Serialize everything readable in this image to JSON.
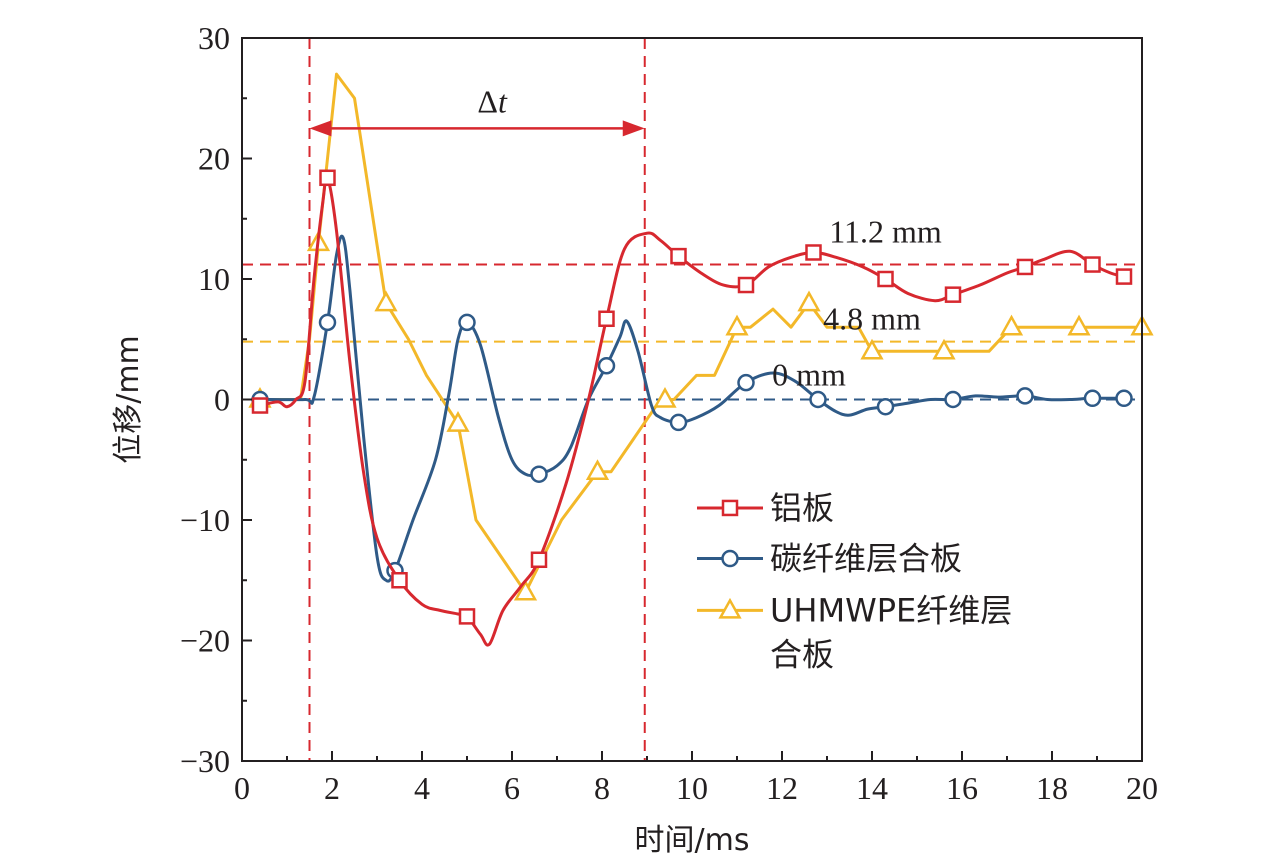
{
  "chart_data": {
    "type": "line",
    "xlabel": "时间/ms",
    "ylabel": "位移/mm",
    "xlim": [
      0,
      20
    ],
    "ylim": [
      -30,
      30
    ],
    "xticks": [
      0,
      2,
      4,
      6,
      8,
      10,
      12,
      14,
      16,
      18,
      20
    ],
    "yticks": [
      -30,
      -20,
      -10,
      0,
      10,
      20,
      30
    ],
    "xtick_labels": [
      "0",
      "2",
      "4",
      "6",
      "8",
      "10",
      "12",
      "14",
      "16",
      "18",
      "20"
    ],
    "ytick_labels": [
      "−30",
      "−20",
      "−10",
      "0",
      "10",
      "20",
      "30"
    ],
    "grid": false,
    "legend_position": "right-middle",
    "series": [
      {
        "name": "铝板",
        "color": "#d7282f",
        "marker": "square",
        "points": [
          [
            0.4,
            -0.5
          ],
          [
            0.8,
            -0.2
          ],
          [
            1.0,
            -0.6
          ],
          [
            1.2,
            0.0
          ],
          [
            1.4,
            1.5
          ],
          [
            1.6,
            10.0
          ],
          [
            1.8,
            16.5
          ],
          [
            1.9,
            18.4
          ],
          [
            2.1,
            14.0
          ],
          [
            2.4,
            3.0
          ],
          [
            2.7,
            -6.0
          ],
          [
            3.0,
            -11.5
          ],
          [
            3.5,
            -15.0
          ],
          [
            4.0,
            -17.0
          ],
          [
            4.4,
            -17.5
          ],
          [
            4.8,
            -17.8
          ],
          [
            5.0,
            -18.0
          ],
          [
            5.3,
            -19.5
          ],
          [
            5.5,
            -20.3
          ],
          [
            5.8,
            -17.5
          ],
          [
            6.2,
            -15.5
          ],
          [
            6.6,
            -13.3
          ],
          [
            7.2,
            -7.0
          ],
          [
            7.7,
            0.0
          ],
          [
            8.1,
            6.7
          ],
          [
            8.5,
            12.5
          ],
          [
            9.0,
            13.8
          ],
          [
            9.3,
            13.2
          ],
          [
            9.7,
            11.9
          ],
          [
            10.2,
            10.5
          ],
          [
            10.7,
            9.5
          ],
          [
            11.2,
            9.5
          ],
          [
            11.7,
            11.0
          ],
          [
            12.2,
            11.8
          ],
          [
            12.7,
            12.2
          ],
          [
            13.2,
            11.8
          ],
          [
            13.8,
            11.0
          ],
          [
            14.3,
            10.0
          ],
          [
            14.8,
            8.8
          ],
          [
            15.4,
            8.2
          ],
          [
            15.8,
            8.7
          ],
          [
            16.4,
            9.5
          ],
          [
            17.0,
            10.5
          ],
          [
            17.4,
            11.0
          ],
          [
            17.8,
            11.6
          ],
          [
            18.4,
            12.3
          ],
          [
            18.9,
            11.2
          ],
          [
            19.3,
            10.5
          ],
          [
            19.6,
            10.2
          ]
        ],
        "marker_points": [
          [
            0.4,
            -0.5
          ],
          [
            1.9,
            18.4
          ],
          [
            3.5,
            -15.0
          ],
          [
            5.0,
            -18.0
          ],
          [
            6.6,
            -13.3
          ],
          [
            8.1,
            6.7
          ],
          [
            9.7,
            11.9
          ],
          [
            11.2,
            9.5
          ],
          [
            12.7,
            12.2
          ],
          [
            14.3,
            10.0
          ],
          [
            15.8,
            8.7
          ],
          [
            17.4,
            11.0
          ],
          [
            18.9,
            11.2
          ],
          [
            19.6,
            10.2
          ]
        ]
      },
      {
        "name": "碳纤维层合板",
        "color": "#2f5a87",
        "marker": "circle",
        "points": [
          [
            0.4,
            0.0
          ],
          [
            1.4,
            0.0
          ],
          [
            1.6,
            0.2
          ],
          [
            1.9,
            6.4
          ],
          [
            2.1,
            12.0
          ],
          [
            2.25,
            13.4
          ],
          [
            2.4,
            9.0
          ],
          [
            2.7,
            -3.0
          ],
          [
            3.0,
            -13.0
          ],
          [
            3.2,
            -15.0
          ],
          [
            3.4,
            -14.2
          ],
          [
            3.8,
            -10.0
          ],
          [
            4.3,
            -5.0
          ],
          [
            4.6,
            0.5
          ],
          [
            4.8,
            5.0
          ],
          [
            5.0,
            6.4
          ],
          [
            5.3,
            4.5
          ],
          [
            5.7,
            -1.5
          ],
          [
            6.0,
            -5.0
          ],
          [
            6.3,
            -6.2
          ],
          [
            6.6,
            -6.2
          ],
          [
            7.0,
            -5.5
          ],
          [
            7.3,
            -4.0
          ],
          [
            7.7,
            0.0
          ],
          [
            8.1,
            2.8
          ],
          [
            8.4,
            5.2
          ],
          [
            8.55,
            6.5
          ],
          [
            8.8,
            4.0
          ],
          [
            9.1,
            -0.5
          ],
          [
            9.3,
            -1.5
          ],
          [
            9.7,
            -1.9
          ],
          [
            10.1,
            -1.5
          ],
          [
            10.6,
            -0.5
          ],
          [
            11.2,
            1.4
          ],
          [
            11.8,
            2.2
          ],
          [
            12.3,
            1.5
          ],
          [
            12.8,
            0.0
          ],
          [
            13.2,
            -1.0
          ],
          [
            13.5,
            -1.3
          ],
          [
            13.9,
            -0.8
          ],
          [
            14.3,
            -0.6
          ],
          [
            14.8,
            -0.3
          ],
          [
            15.3,
            0.0
          ],
          [
            15.8,
            0.0
          ],
          [
            16.3,
            0.3
          ],
          [
            16.8,
            0.2
          ],
          [
            17.4,
            0.3
          ],
          [
            17.9,
            0.0
          ],
          [
            18.4,
            0.0
          ],
          [
            18.9,
            0.1
          ],
          [
            19.6,
            0.1
          ]
        ],
        "marker_points": [
          [
            0.4,
            0.0
          ],
          [
            1.9,
            6.4
          ],
          [
            3.4,
            -14.2
          ],
          [
            5.0,
            6.4
          ],
          [
            6.6,
            -6.2
          ],
          [
            8.1,
            2.8
          ],
          [
            9.7,
            -1.9
          ],
          [
            11.2,
            1.4
          ],
          [
            12.8,
            0.0
          ],
          [
            14.3,
            -0.6
          ],
          [
            15.8,
            0.0
          ],
          [
            17.4,
            0.3
          ],
          [
            18.9,
            0.1
          ],
          [
            19.6,
            0.1
          ]
        ]
      },
      {
        "name": "UHMWPE纤维层合板",
        "color": "#f3b829",
        "marker": "triangle",
        "points": [
          [
            0.4,
            0.0
          ],
          [
            1.3,
            0.0
          ],
          [
            1.5,
            5.0
          ],
          [
            1.7,
            13.0
          ],
          [
            2.1,
            27.0
          ],
          [
            2.5,
            25.0
          ],
          [
            3.2,
            8.0
          ],
          [
            3.7,
            5.0
          ],
          [
            4.1,
            2.0
          ],
          [
            4.8,
            -2.0
          ],
          [
            5.2,
            -10.0
          ],
          [
            6.3,
            -16.0
          ],
          [
            7.1,
            -10.0
          ],
          [
            7.9,
            -6.0
          ],
          [
            8.2,
            -6.0
          ],
          [
            9.3,
            0.0
          ],
          [
            9.6,
            0.0
          ],
          [
            10.1,
            2.0
          ],
          [
            10.5,
            2.0
          ],
          [
            11.0,
            6.0
          ],
          [
            11.3,
            6.0
          ],
          [
            11.8,
            7.5
          ],
          [
            12.2,
            6.0
          ],
          [
            12.6,
            8.0
          ],
          [
            13.0,
            6.0
          ],
          [
            13.7,
            6.0
          ],
          [
            14.0,
            4.0
          ],
          [
            15.6,
            4.0
          ],
          [
            16.6,
            4.0
          ],
          [
            17.1,
            6.0
          ],
          [
            18.6,
            6.0
          ],
          [
            20.0,
            6.0
          ]
        ],
        "marker_points": [
          [
            0.4,
            0.0
          ],
          [
            1.7,
            13.0
          ],
          [
            3.2,
            8.0
          ],
          [
            4.8,
            -2.0
          ],
          [
            6.3,
            -16.0
          ],
          [
            7.9,
            -6.0
          ],
          [
            9.4,
            0.0
          ],
          [
            11.0,
            6.0
          ],
          [
            12.6,
            8.0
          ],
          [
            14.0,
            4.0
          ],
          [
            15.6,
            4.0
          ],
          [
            17.1,
            6.0
          ],
          [
            18.6,
            6.0
          ],
          [
            20.0,
            6.0
          ]
        ]
      }
    ],
    "reference_lines": [
      {
        "axis": "y",
        "value": 11.2,
        "color": "#d7282f",
        "label": "11.2 mm"
      },
      {
        "axis": "y",
        "value": 4.8,
        "color": "#f3b829",
        "label": "4.8 mm"
      },
      {
        "axis": "y",
        "value": 0,
        "color": "#2f5a87",
        "label": "0 mm"
      },
      {
        "axis": "x",
        "value": 1.5,
        "color": "#d7282f"
      },
      {
        "axis": "x",
        "value": 8.95,
        "color": "#d7282f"
      }
    ],
    "interval_annotation": {
      "from": 1.5,
      "to": 8.95,
      "y": 22.5,
      "label_symbol": "Δ",
      "label_italic": "t",
      "color": "#d7282f"
    },
    "legend": [
      {
        "lines": [
          "铝板"
        ]
      },
      {
        "lines": [
          "碳纤维层合板"
        ]
      },
      {
        "lines": [
          "UHMWPE纤维层",
          "合板"
        ]
      }
    ]
  }
}
